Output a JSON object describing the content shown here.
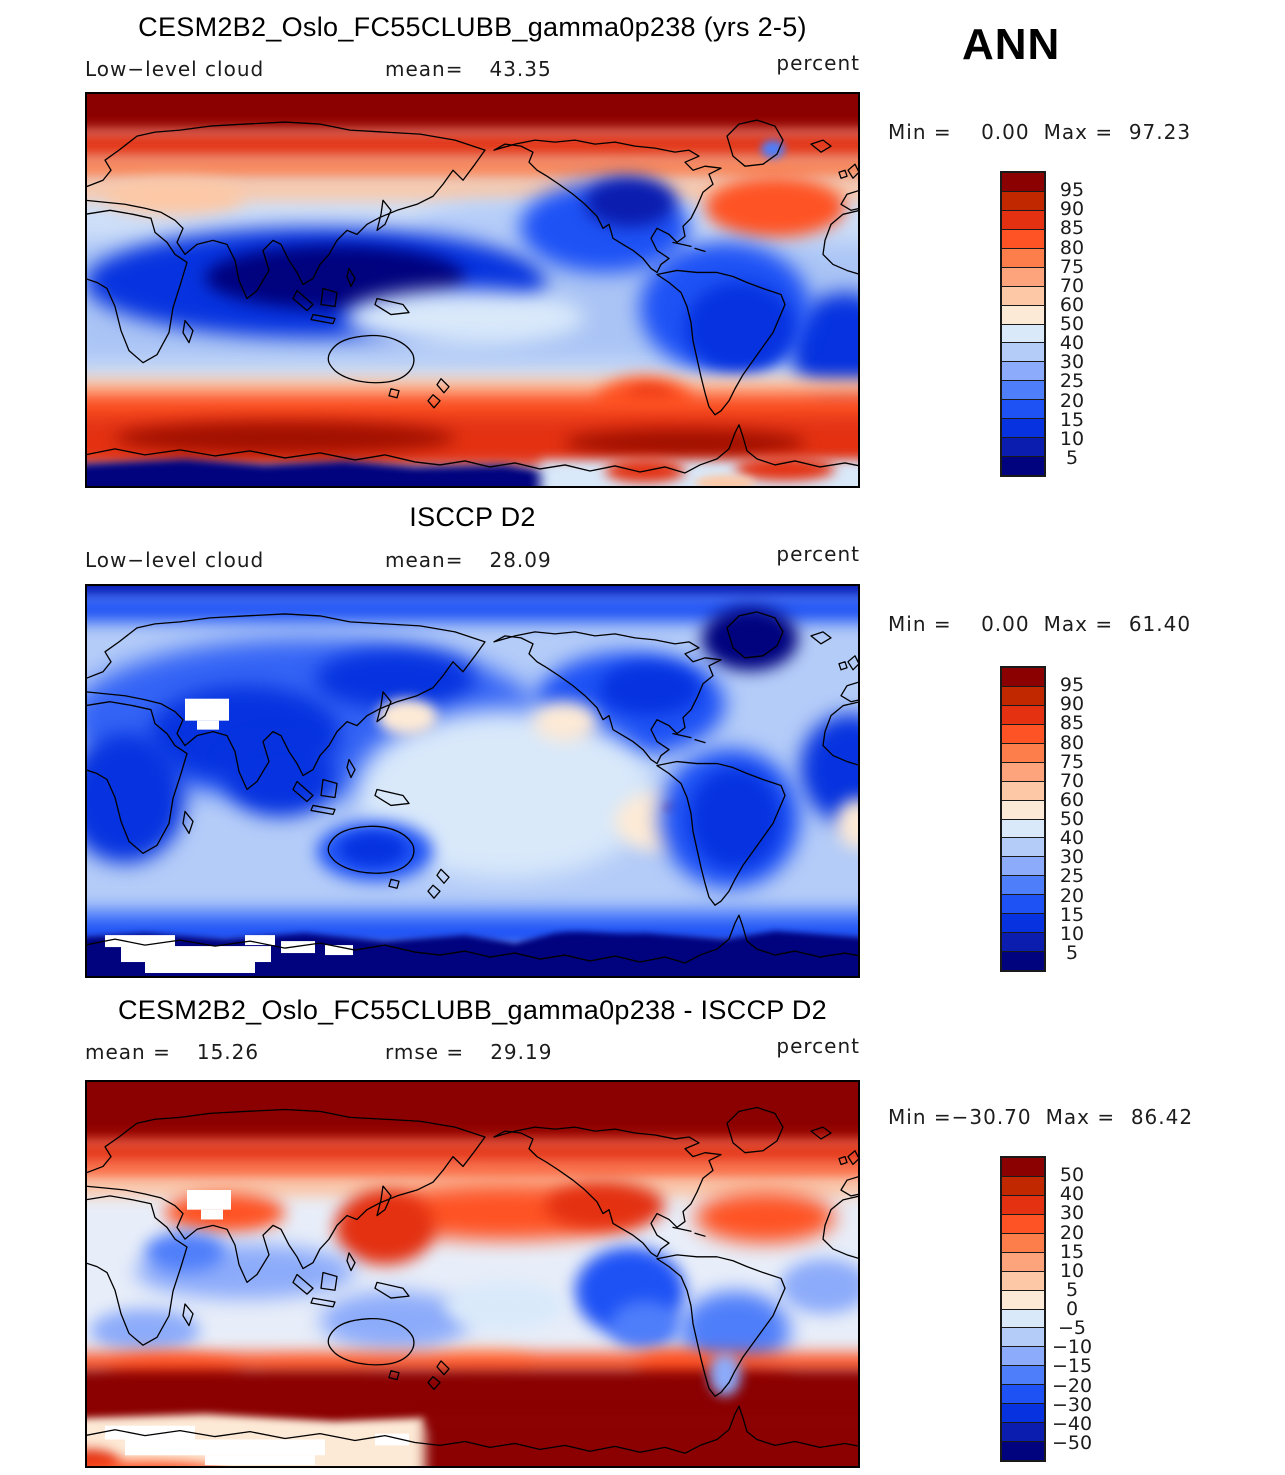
{
  "header": {
    "season": "ANN"
  },
  "palette": {
    "colors_top_to_bottom": [
      "#8b0000",
      "#c22800",
      "#e33112",
      "#fe5324",
      "#fd7e4a",
      "#fda47c",
      "#fcc8a6",
      "#fdead6",
      "#d9e9fa",
      "#b4ccf8",
      "#8cabfa",
      "#4f7efa",
      "#1e52f5",
      "#0633df",
      "#0b1daf",
      "#00027e"
    ]
  },
  "panels": [
    {
      "title": "CESM2B2_Oslo_FC55CLUBB_gamma0p238 (yrs 2-5)",
      "var_label": "Low−level cloud",
      "stats_left": {
        "label": "mean=",
        "value": "43.35"
      },
      "units": "percent",
      "minmax": {
        "min_label": "Min =",
        "min_value": "0.00",
        "max_label": "Max =",
        "max_value": "97.23"
      },
      "ticks": [
        "95",
        "90",
        "85",
        "80",
        "75",
        "70",
        "60",
        "50",
        "40",
        "30",
        "25",
        "20",
        "15",
        "10",
        "5"
      ]
    },
    {
      "title": "ISCCP D2",
      "var_label": "Low−level cloud",
      "stats_left": {
        "label": "mean=",
        "value": "28.09"
      },
      "units": "percent",
      "minmax": {
        "min_label": "Min =",
        "min_value": "0.00",
        "max_label": "Max =",
        "max_value": "61.40"
      },
      "ticks": [
        "95",
        "90",
        "85",
        "80",
        "75",
        "70",
        "60",
        "50",
        "40",
        "30",
        "25",
        "20",
        "15",
        "10",
        "5"
      ]
    },
    {
      "title": "CESM2B2_Oslo_FC55CLUBB_gamma0p238 - ISCCP D2",
      "stats_left": {
        "label": "mean =",
        "value": "15.26"
      },
      "stats_mid": {
        "label": "rmse =",
        "value": "29.19"
      },
      "units": "percent",
      "minmax": {
        "min_label": "Min =",
        "min_value": "−30.70",
        "max_label": "Max =",
        "max_value": "86.42"
      },
      "ticks": [
        "50",
        "40",
        "30",
        "20",
        "15",
        "10",
        "5",
        "0",
        "−5",
        "−10",
        "−15",
        "−20",
        "−30",
        "−40",
        "−50"
      ]
    }
  ],
  "chart_data": [
    {
      "type": "heatmap",
      "variant": "filled-contour global lat-lon map, equirectangular, lon 0–360, lat 90 to −90",
      "title": "CESM2B2_Oslo_FC55CLUBB_gamma0p238 (yrs 2-5)",
      "variable": "Low-level cloud",
      "units": "percent",
      "season": "ANN",
      "stats": {
        "mean": 43.35,
        "min": 0.0,
        "max": 97.23
      },
      "contour_levels": [
        5,
        10,
        15,
        20,
        25,
        30,
        40,
        50,
        60,
        70,
        75,
        80,
        85,
        90,
        95
      ],
      "palette_ref": "palette.colors_top_to_bottom",
      "legend_position": "right",
      "pattern": "High low-cloud fraction (>85%, dark red) across the Arctic and the Southern Ocean storm-track band (~45–65S); minima (<15%, dark navy) over central Asia, the Sahara/Arabia, subtropical continents, western North America, northern South America and East Antarctica; orange stratocumulus maximum off the west coast of South America; pale (40–60%) tropical oceans."
    },
    {
      "type": "heatmap",
      "variant": "filled-contour global lat-lon map, equirectangular, lon 0–360, lat 90 to −90",
      "title": "ISCCP D2",
      "variable": "Low-level cloud",
      "units": "percent",
      "season": "ANN",
      "stats": {
        "mean": 28.09,
        "min": 0.0,
        "max": 61.4
      },
      "contour_levels": [
        5,
        10,
        15,
        20,
        25,
        30,
        40,
        50,
        60,
        70,
        75,
        80,
        85,
        90,
        95
      ],
      "palette_ref": "palette.colors_top_to_bottom",
      "legend_position": "right",
      "pattern": "Mostly 20–40% (blues) everywhere; darker blue (<15%) over continents, Greenland and the Antarctic interior; pale blue to small cream spots (40–60%) over the central/eastern Pacific and southern midlatitude oceans; white areas of missing data over the Tibetan Plateau and parts of Antarctica."
    },
    {
      "type": "heatmap",
      "variant": "filled-contour global lat-lon difference map (model minus observations)",
      "title": "CESM2B2_Oslo_FC55CLUBB_gamma0p238 - ISCCP D2",
      "variable": "Low-level cloud difference",
      "units": "percent",
      "season": "ANN",
      "stats": {
        "mean": 15.26,
        "rmse": 29.19,
        "min": -30.7,
        "max": 86.42
      },
      "contour_levels": [
        -50,
        -40,
        -30,
        -20,
        -15,
        -10,
        -5,
        0,
        5,
        10,
        15,
        20,
        30,
        40,
        50
      ],
      "palette_ref": "palette.colors_top_to_bottom",
      "legend_position": "right",
      "pattern": "Model overestimates by >50% (dark red) poleward of ~55N and over the Southern Ocean/Antarctic coast; moderate positive bias over the North Pacific, North Atlantic and off Peru; scattered negative bias (blues) over subtropical oceans, Mexico/eastern Pacific, South America and southern Asia; white missing-data patches over Tibet and East Antarctica."
    }
  ]
}
